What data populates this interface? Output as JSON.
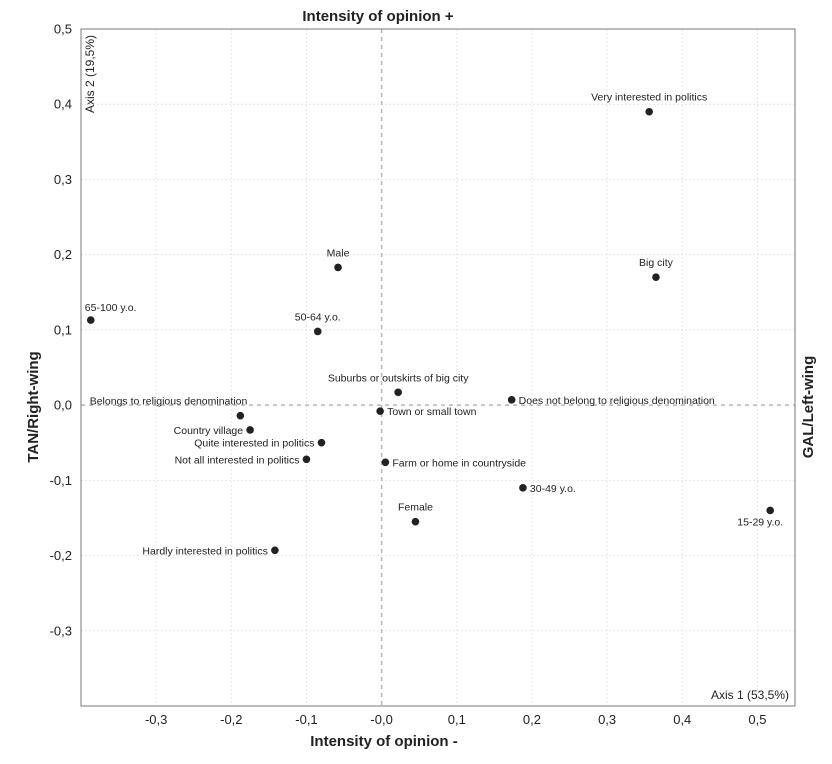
{
  "chart_data": {
    "type": "scatter",
    "title_top": "Intensity of opinion +",
    "xlabel": "Intensity of opinion -",
    "ylabel_left": "TAN/Right-wing",
    "ylabel_right": "GAL/Left-wing",
    "axis1_label": "Axis 1 (53,5%)",
    "axis2_label": "Axis 2 (19,5%)",
    "xlim": [
      -0.4,
      0.55
    ],
    "ylim": [
      -0.4,
      0.5
    ],
    "xticks": [
      {
        "value": -0.3,
        "label": "-0,3"
      },
      {
        "value": -0.2,
        "label": "-0,2"
      },
      {
        "value": -0.1,
        "label": "-0,1"
      },
      {
        "value": 0.0,
        "label": "-0,0"
      },
      {
        "value": 0.1,
        "label": "0,1"
      },
      {
        "value": 0.2,
        "label": "0,2"
      },
      {
        "value": 0.3,
        "label": "0,3"
      },
      {
        "value": 0.4,
        "label": "0,4"
      },
      {
        "value": 0.5,
        "label": "0,5"
      }
    ],
    "yticks": [
      {
        "value": 0.5,
        "label": "0,5"
      },
      {
        "value": 0.4,
        "label": "0,4"
      },
      {
        "value": 0.3,
        "label": "0,3"
      },
      {
        "value": 0.2,
        "label": "0,2"
      },
      {
        "value": 0.1,
        "label": "0,1"
      },
      {
        "value": 0.0,
        "label": "0,0"
      },
      {
        "value": -0.1,
        "label": "-0,1"
      },
      {
        "value": -0.2,
        "label": "-0,2"
      },
      {
        "value": -0.3,
        "label": "-0,3"
      }
    ],
    "points": [
      {
        "label": "Very interested in politics",
        "x": 0.356,
        "y": 0.39,
        "pos": "above"
      },
      {
        "label": "Big city",
        "x": 0.365,
        "y": 0.17,
        "pos": "above"
      },
      {
        "label": "Male",
        "x": -0.058,
        "y": 0.183,
        "pos": "above"
      },
      {
        "label": "65-100 y.o.",
        "x": -0.387,
        "y": 0.113,
        "pos": "above-right"
      },
      {
        "label": "50-64 y.o.",
        "x": -0.085,
        "y": 0.098,
        "pos": "above"
      },
      {
        "label": "Suburbs or outskirts of big city",
        "x": 0.022,
        "y": 0.017,
        "pos": "above"
      },
      {
        "label": "Does not belong to religious denomination",
        "x": 0.173,
        "y": 0.007,
        "pos": "right"
      },
      {
        "label": "Belongs to religious denomination",
        "x": -0.188,
        "y": -0.014,
        "pos": "above-left"
      },
      {
        "label": "Town or small town",
        "x": -0.002,
        "y": -0.008,
        "pos": "right"
      },
      {
        "label": "Country village",
        "x": -0.175,
        "y": -0.033,
        "pos": "left"
      },
      {
        "label": "Quite interested in politics",
        "x": -0.08,
        "y": -0.05,
        "pos": "left"
      },
      {
        "label": "Not all interested in politics",
        "x": -0.1,
        "y": -0.072,
        "pos": "left"
      },
      {
        "label": "Farm or home in countryside",
        "x": 0.005,
        "y": -0.076,
        "pos": "right"
      },
      {
        "label": "30-49 y.o.",
        "x": 0.188,
        "y": -0.11,
        "pos": "right"
      },
      {
        "label": "15-29 y.o.",
        "x": 0.517,
        "y": -0.14,
        "pos": "below-left"
      },
      {
        "label": "Female",
        "x": 0.045,
        "y": -0.155,
        "pos": "above"
      },
      {
        "label": "Hardly interested in politics",
        "x": -0.142,
        "y": -0.193,
        "pos": "left"
      }
    ]
  }
}
